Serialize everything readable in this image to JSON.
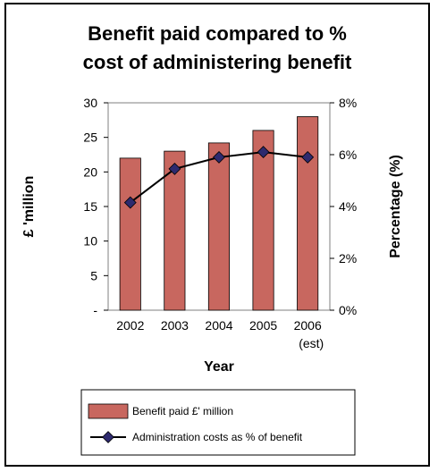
{
  "chart_data": {
    "type": "bar+line",
    "title_lines": [
      "Benefit paid compared to %",
      "cost of administering benefit"
    ],
    "xlabel": "Year",
    "ylabel_left": "£ 'million",
    "ylabel_right": "Percentage (%)",
    "categories": [
      {
        "main": "2002",
        "sub": ""
      },
      {
        "main": "2003",
        "sub": ""
      },
      {
        "main": "2004",
        "sub": ""
      },
      {
        "main": "2005",
        "sub": ""
      },
      {
        "main": "2006",
        "sub": "(est)"
      }
    ],
    "left_axis": {
      "min": 0,
      "max": 30,
      "ticks": [
        "-",
        "5",
        "10",
        "15",
        "20",
        "25",
        "30"
      ]
    },
    "right_axis": {
      "min": 0,
      "max": 8,
      "ticks": [
        "0%",
        "2%",
        "4%",
        "6%",
        "8%"
      ]
    },
    "series": [
      {
        "name": "Benefit paid £' million",
        "kind": "bar",
        "axis": "left",
        "color": "#c8675f",
        "values": [
          22.0,
          23.0,
          24.2,
          26.0,
          28.0
        ]
      },
      {
        "name": "Administration costs as % of benefit",
        "kind": "line",
        "axis": "right",
        "color": "#000000",
        "marker_color": "#2e2a6e",
        "values": [
          4.15,
          5.45,
          5.9,
          6.1,
          5.9
        ]
      }
    ],
    "grid": false,
    "legend_position": "bottom"
  }
}
